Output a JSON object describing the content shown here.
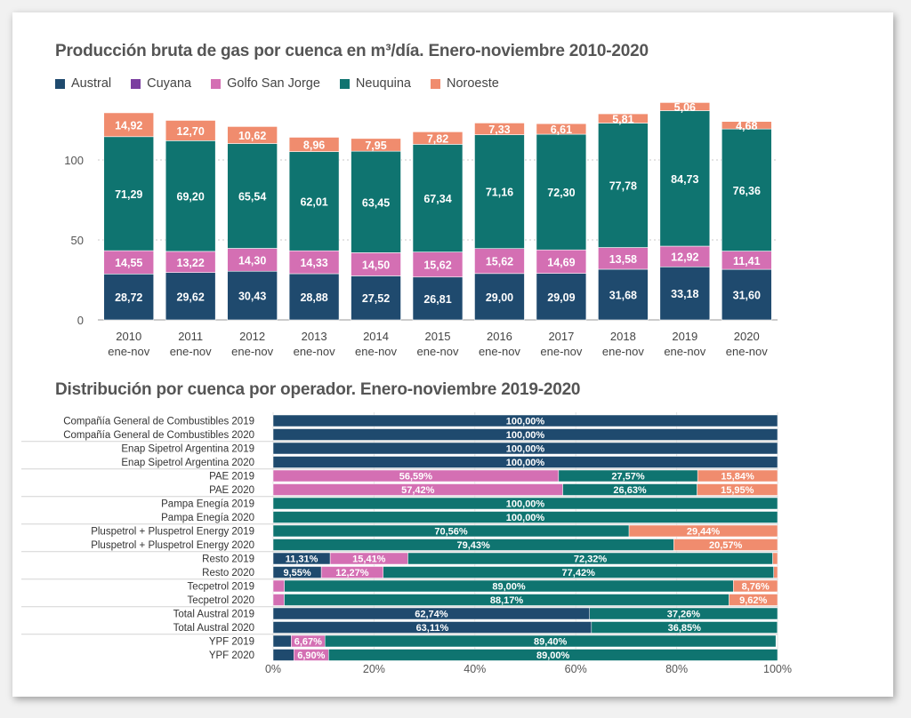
{
  "chart_data": [
    {
      "type": "bar",
      "stacked": true,
      "title": "Producción bruta de gas por cuenca en m³/día. Enero-noviembre 2010-2020",
      "categories": [
        [
          "2010",
          "ene-nov"
        ],
        [
          "2011",
          "ene-nov"
        ],
        [
          "2012",
          "ene-nov"
        ],
        [
          "2013",
          "ene-nov"
        ],
        [
          "2014",
          "ene-nov"
        ],
        [
          "2015",
          "ene-nov"
        ],
        [
          "2016",
          "ene-nov"
        ],
        [
          "2017",
          "ene-nov"
        ],
        [
          "2018",
          "ene-nov"
        ],
        [
          "2019",
          "ene-nov"
        ],
        [
          "2020",
          "ene-nov"
        ]
      ],
      "ylim": [
        0,
        140
      ],
      "yticks": [
        0,
        50,
        100
      ],
      "grid": true,
      "legend_position": "top-left",
      "series": [
        {
          "name": "Austral",
          "color": "#1f4a6e",
          "values": [
            28.72,
            29.62,
            30.43,
            28.88,
            27.52,
            26.81,
            29.0,
            29.09,
            31.68,
            33.18,
            31.6
          ],
          "labels": [
            "28,72",
            "29,62",
            "30,43",
            "28,88",
            "27,52",
            "26,81",
            "29,00",
            "29,09",
            "31,68",
            "33,18",
            "31,60"
          ]
        },
        {
          "name": "Cuyana",
          "color": "#7b3fa0",
          "values": [
            0,
            0,
            0,
            0,
            0,
            0,
            0,
            0,
            0,
            0,
            0
          ],
          "labels": [
            "",
            "",
            "",
            "",
            "",
            "",
            "",
            "",
            "",
            "",
            ""
          ]
        },
        {
          "name": "Golfo San Jorge",
          "color": "#d46fb3",
          "values": [
            14.55,
            13.22,
            14.3,
            14.33,
            14.5,
            15.62,
            15.62,
            14.69,
            13.58,
            12.92,
            11.41
          ],
          "labels": [
            "14,55",
            "13,22",
            "14,30",
            "14,33",
            "14,50",
            "15,62",
            "15,62",
            "14,69",
            "13,58",
            "12,92",
            "11,41"
          ]
        },
        {
          "name": "Neuquina",
          "color": "#0f7470",
          "values": [
            71.29,
            69.2,
            65.54,
            62.01,
            63.45,
            67.34,
            71.16,
            72.3,
            77.78,
            84.73,
            76.36
          ],
          "labels": [
            "71,29",
            "69,20",
            "65,54",
            "62,01",
            "63,45",
            "67,34",
            "71,16",
            "72,30",
            "77,78",
            "84,73",
            "76,36"
          ]
        },
        {
          "name": "Noroeste",
          "color": "#f08c6e",
          "values": [
            14.92,
            12.7,
            10.62,
            8.96,
            7.95,
            7.82,
            7.33,
            6.61,
            5.81,
            5.06,
            4.68
          ],
          "labels": [
            "14,92",
            "12,70",
            "10,62",
            "8,96",
            "7,95",
            "7,82",
            "7,33",
            "6,61",
            "5,81",
            "5,06",
            "4,68"
          ]
        }
      ]
    },
    {
      "type": "bar",
      "orientation": "horizontal",
      "stacked": true,
      "percent": true,
      "title": "Distribución por cuenca por operador. Enero-noviembre 2019-2020",
      "xlim": [
        0,
        100
      ],
      "xticks": [
        "0%",
        "20%",
        "40%",
        "60%",
        "80%",
        "100%"
      ],
      "grid": true,
      "groups": [
        {
          "rows": [
            {
              "label": "Compañía General de Combustibles 2019",
              "segments": [
                {
                  "cuenca": "Austral",
                  "value": 100,
                  "text": "100,00%"
                }
              ]
            },
            {
              "label": "Compañía General de Combustibles 2020",
              "segments": [
                {
                  "cuenca": "Austral",
                  "value": 100,
                  "text": "100,00%"
                }
              ]
            }
          ]
        },
        {
          "rows": [
            {
              "label": "Enap Sipetrol Argentina 2019",
              "segments": [
                {
                  "cuenca": "Austral",
                  "value": 100,
                  "text": "100,00%"
                }
              ]
            },
            {
              "label": "Enap Sipetrol Argentina 2020",
              "segments": [
                {
                  "cuenca": "Austral",
                  "value": 100,
                  "text": "100,00%"
                }
              ]
            }
          ]
        },
        {
          "rows": [
            {
              "label": "PAE 2019",
              "segments": [
                {
                  "cuenca": "Golfo San Jorge",
                  "value": 56.59,
                  "text": "56,59%"
                },
                {
                  "cuenca": "Neuquina",
                  "value": 27.57,
                  "text": "27,57%"
                },
                {
                  "cuenca": "Noroeste",
                  "value": 15.84,
                  "text": "15,84%"
                }
              ]
            },
            {
              "label": "PAE 2020",
              "segments": [
                {
                  "cuenca": "Golfo San Jorge",
                  "value": 57.42,
                  "text": "57,42%"
                },
                {
                  "cuenca": "Neuquina",
                  "value": 26.63,
                  "text": "26,63%"
                },
                {
                  "cuenca": "Noroeste",
                  "value": 15.95,
                  "text": "15,95%"
                }
              ]
            }
          ]
        },
        {
          "rows": [
            {
              "label": "Pampa Enegía 2019",
              "segments": [
                {
                  "cuenca": "Neuquina",
                  "value": 100,
                  "text": "100,00%"
                }
              ]
            },
            {
              "label": "Pampa Enegía 2020",
              "segments": [
                {
                  "cuenca": "Neuquina",
                  "value": 100,
                  "text": "100,00%"
                }
              ]
            }
          ]
        },
        {
          "rows": [
            {
              "label": "Pluspetrol + Pluspetrol Energy 2019",
              "segments": [
                {
                  "cuenca": "Neuquina",
                  "value": 70.56,
                  "text": "70,56%"
                },
                {
                  "cuenca": "Noroeste",
                  "value": 29.44,
                  "text": "29,44%"
                }
              ]
            },
            {
              "label": "Pluspetrol + Pluspetrol Energy 2020",
              "segments": [
                {
                  "cuenca": "Neuquina",
                  "value": 79.43,
                  "text": "79,43%"
                },
                {
                  "cuenca": "Noroeste",
                  "value": 20.57,
                  "text": "20,57%"
                }
              ]
            }
          ]
        },
        {
          "rows": [
            {
              "label": "Resto 2019",
              "segments": [
                {
                  "cuenca": "Austral",
                  "value": 11.31,
                  "text": "11,31%"
                },
                {
                  "cuenca": "Golfo San Jorge",
                  "value": 15.41,
                  "text": "15,41%"
                },
                {
                  "cuenca": "Neuquina",
                  "value": 72.32,
                  "text": "72,32%"
                },
                {
                  "cuenca": "Noroeste",
                  "value": 0.96,
                  "text": ""
                }
              ]
            },
            {
              "label": "Resto 2020",
              "segments": [
                {
                  "cuenca": "Austral",
                  "value": 9.55,
                  "text": "9,55%"
                },
                {
                  "cuenca": "Golfo San Jorge",
                  "value": 12.27,
                  "text": "12,27%"
                },
                {
                  "cuenca": "Neuquina",
                  "value": 77.42,
                  "text": "77,42%"
                },
                {
                  "cuenca": "Noroeste",
                  "value": 0.76,
                  "text": ""
                }
              ]
            }
          ]
        },
        {
          "rows": [
            {
              "label": "Tecpetrol 2019",
              "segments": [
                {
                  "cuenca": "Golfo San Jorge",
                  "value": 2.24,
                  "text": ""
                },
                {
                  "cuenca": "Neuquina",
                  "value": 89.0,
                  "text": "89,00%"
                },
                {
                  "cuenca": "Noroeste",
                  "value": 8.76,
                  "text": "8,76%"
                }
              ]
            },
            {
              "label": "Tecpetrol 2020",
              "segments": [
                {
                  "cuenca": "Golfo San Jorge",
                  "value": 2.21,
                  "text": ""
                },
                {
                  "cuenca": "Neuquina",
                  "value": 88.17,
                  "text": "88,17%"
                },
                {
                  "cuenca": "Noroeste",
                  "value": 9.62,
                  "text": "9,62%"
                }
              ]
            }
          ]
        },
        {
          "rows": [
            {
              "label": "Total Austral 2019",
              "segments": [
                {
                  "cuenca": "Austral",
                  "value": 62.74,
                  "text": "62,74%"
                },
                {
                  "cuenca": "Neuquina",
                  "value": 37.26,
                  "text": "37,26%"
                }
              ]
            },
            {
              "label": "Total Austral 2020",
              "segments": [
                {
                  "cuenca": "Austral",
                  "value": 63.11,
                  "text": "63,11%"
                },
                {
                  "cuenca": "Neuquina",
                  "value": 36.85,
                  "text": "36,85%"
                }
              ]
            }
          ]
        },
        {
          "rows": [
            {
              "label": "YPF 2019",
              "segments": [
                {
                  "cuenca": "Austral",
                  "value": 3.6,
                  "text": ""
                },
                {
                  "cuenca": "Golfo San Jorge",
                  "value": 6.67,
                  "text": "6,67%"
                },
                {
                  "cuenca": "Neuquina",
                  "value": 89.4,
                  "text": "89,40%"
                }
              ]
            },
            {
              "label": "YPF 2020",
              "segments": [
                {
                  "cuenca": "Austral",
                  "value": 4.1,
                  "text": ""
                },
                {
                  "cuenca": "Golfo San Jorge",
                  "value": 6.9,
                  "text": "6,90%"
                },
                {
                  "cuenca": "Neuquina",
                  "value": 89.0,
                  "text": "89,00%"
                }
              ]
            }
          ]
        }
      ]
    }
  ]
}
